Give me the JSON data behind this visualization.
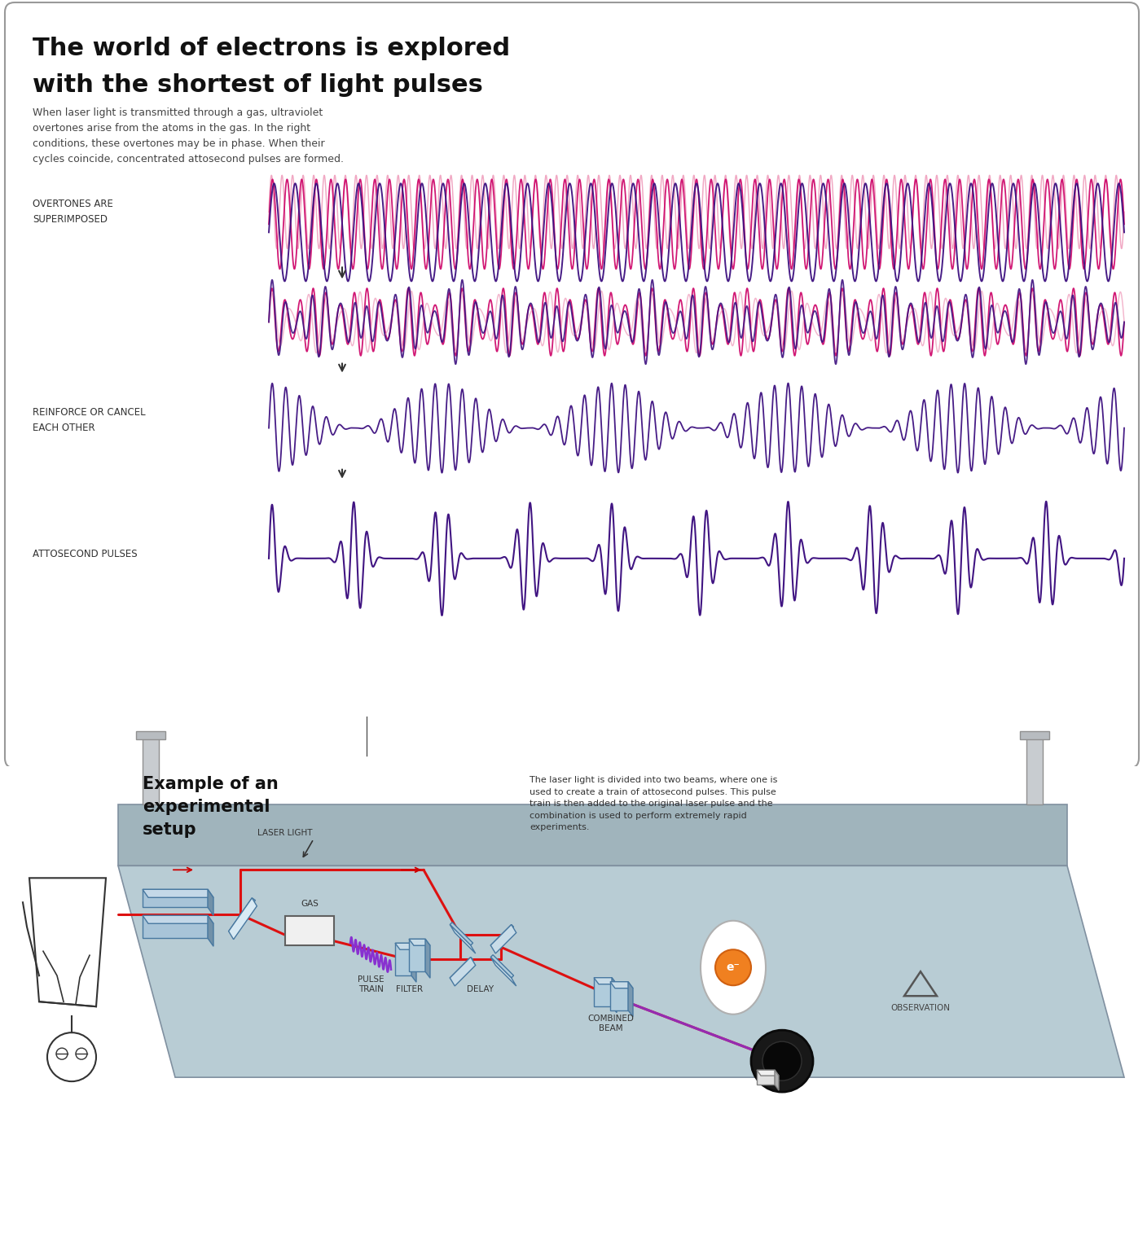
{
  "title_line1": "The world of electrons is explored",
  "title_line2": "with the shortest of light pulses",
  "body_text": "When laser light is transmitted through a gas, ultraviolet\novertones arise from the atoms in the gas. In the right\nconditions, these overtones may be in phase. When their\ncycles coincide, concentrated attosecond pulses are formed.",
  "label1": "OVERTONES ARE\nSUPERIMPOSED",
  "label2": "REINFORCE OR CANCEL\nEACH OTHER",
  "label3": "ATTOSECOND PULSES",
  "color_pink": "#f0a0be",
  "color_magenta": "#cc0066",
  "color_purple": "#3d1080",
  "color_mid_purple": "#8040c0",
  "bg_color": "#ffffff",
  "bottom_bg": "#d0d8dc",
  "table_top": "#b8ccd4",
  "table_front": "#a0b4bc",
  "table_edge": "#8090a0",
  "optic_color": "#b0ccdc",
  "optic_top": "#c8dce8",
  "optic_side": "#7898b0",
  "red_beam": "#dd1111",
  "purple_beam": "#8830d0",
  "caption_text": "The laser light is divided into two beams, where one is\nused to create a train of attosecond pulses. This pulse\ntrain is then added to the original laser pulse and the\ncombination is used to perform extremely rapid\nexperiments.",
  "exp_title": "Example of an\nexperimental\nsetup",
  "label_pulse_train": "PULSE\nTRAIN",
  "label_filter": "FILTER",
  "label_gas": "GAS",
  "label_delay": "DELAY",
  "label_combined_beam": "COMBINED\nBEAM",
  "label_observation": "OBSERVATION",
  "label_laser_light": "LASER LIGHT",
  "electron_label": "e⁻"
}
